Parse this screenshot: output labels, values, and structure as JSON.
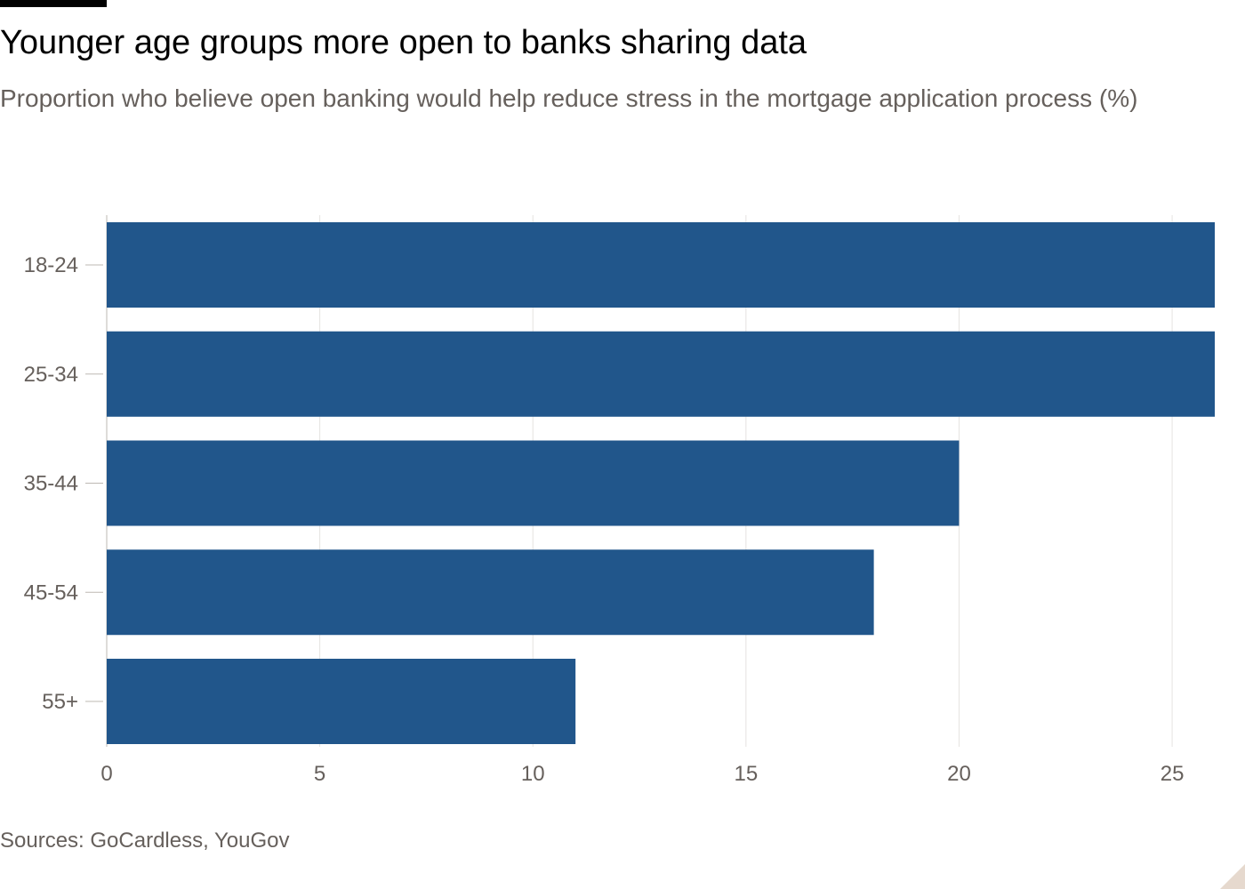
{
  "header": {
    "title": "Younger age groups more open to banks sharing data",
    "subtitle": "Proportion who believe open banking would help reduce stress in the mortgage application process (%)"
  },
  "footer": {
    "source": "Sources: GoCardless, YouGov"
  },
  "colors": {
    "bar": "#21568b",
    "grid": "#e6e3e0",
    "text_muted": "#66605c",
    "axis": "#bdb8b3"
  },
  "chart_data": {
    "type": "bar",
    "orientation": "horizontal",
    "categories": [
      "18-24",
      "25-34",
      "35-44",
      "45-54",
      "55+"
    ],
    "values": [
      26,
      26,
      20,
      18,
      11
    ],
    "xlim": [
      0,
      26
    ],
    "xticks": [
      0,
      5,
      10,
      15,
      20,
      25
    ],
    "grid": true
  }
}
